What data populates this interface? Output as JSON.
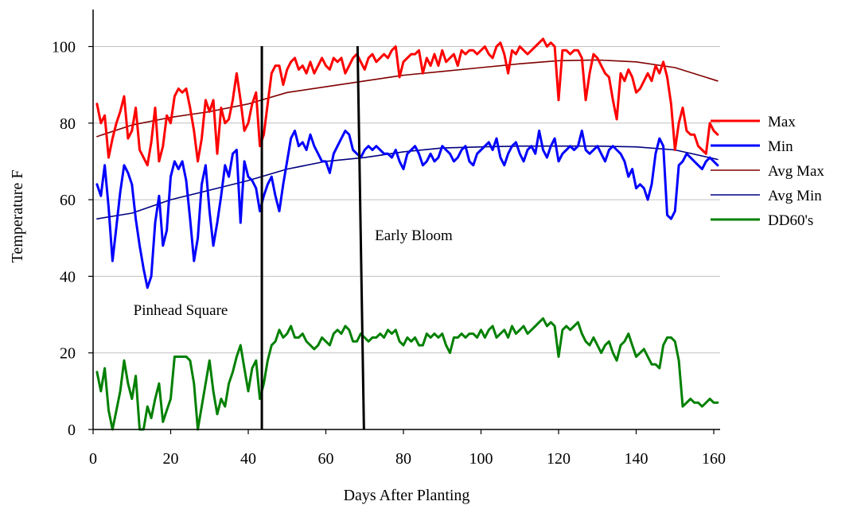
{
  "chart_data": {
    "type": "line",
    "title": "",
    "xlabel": "Days After Planting",
    "ylabel": "Temperature F",
    "xlim": [
      0,
      170
    ],
    "ylim": [
      0,
      110
    ],
    "xticks": [
      0,
      20,
      40,
      60,
      80,
      100,
      120,
      140,
      160
    ],
    "yticks": [
      0,
      20,
      40,
      60,
      80,
      100
    ],
    "grid": "horizontal",
    "legend_position": "right",
    "series": [
      {
        "name": "Max",
        "color": "#ff0000",
        "x": [
          1,
          2,
          3,
          4,
          5,
          6,
          7,
          8,
          9,
          10,
          11,
          12,
          13,
          14,
          15,
          16,
          17,
          18,
          19,
          20,
          21,
          22,
          23,
          24,
          25,
          26,
          27,
          28,
          29,
          30,
          31,
          32,
          33,
          34,
          35,
          36,
          37,
          38,
          39,
          40,
          41,
          42,
          43,
          44,
          45,
          46,
          47,
          48,
          49,
          50,
          51,
          52,
          53,
          54,
          55,
          56,
          57,
          58,
          59,
          60,
          61,
          62,
          63,
          64,
          65,
          66,
          67,
          68,
          69,
          70,
          71,
          72,
          73,
          74,
          75,
          76,
          77,
          78,
          79,
          80,
          81,
          82,
          83,
          84,
          85,
          86,
          87,
          88,
          89,
          90,
          91,
          92,
          93,
          94,
          95,
          96,
          97,
          98,
          99,
          100,
          101,
          102,
          103,
          104,
          105,
          106,
          107,
          108,
          109,
          110,
          111,
          112,
          113,
          114,
          115,
          116,
          117,
          118,
          119,
          120,
          121,
          122,
          123,
          124,
          125,
          126,
          127,
          128,
          129,
          130,
          131,
          132,
          133,
          134,
          135,
          136,
          137,
          138,
          139,
          140,
          141,
          142,
          143,
          144,
          145,
          146,
          147,
          148,
          149,
          150,
          151,
          152,
          153,
          154,
          155,
          156,
          157,
          158,
          159,
          160,
          161
        ],
        "values": [
          85,
          80,
          82,
          71,
          76,
          80,
          83,
          87,
          76,
          78,
          84,
          73,
          71,
          69,
          75,
          84,
          70,
          74,
          82,
          80,
          87,
          89,
          88,
          89,
          84,
          78,
          70,
          76,
          86,
          83,
          86,
          72,
          84,
          80,
          81,
          86,
          93,
          86,
          78,
          80,
          85,
          88,
          74,
          77,
          85,
          93,
          95,
          95,
          90,
          94,
          96,
          97,
          94,
          95,
          93,
          96,
          93,
          95,
          97,
          95,
          94,
          97,
          96,
          97,
          93,
          95,
          97,
          98,
          96,
          94,
          97,
          98,
          96,
          97,
          98,
          97,
          99,
          100,
          92,
          96,
          97,
          98,
          98,
          99,
          93,
          97,
          95,
          98,
          95,
          99,
          96,
          97,
          98,
          95,
          99,
          98,
          99,
          99,
          98,
          99,
          100,
          98,
          97,
          100,
          101,
          98,
          93,
          99,
          98,
          100,
          99,
          98,
          99,
          100,
          101,
          102,
          100,
          101,
          100,
          86,
          99,
          99,
          98,
          99,
          99,
          97,
          86,
          93,
          98,
          97,
          95,
          93,
          92,
          86,
          81,
          93,
          91,
          94,
          92,
          88,
          89,
          91,
          93,
          91,
          95,
          93,
          96,
          92,
          85,
          73,
          80,
          84,
          78,
          77,
          77,
          74,
          73,
          72,
          80,
          78,
          77
        ]
      },
      {
        "name": "Min",
        "color": "#0000ff",
        "x": [
          1,
          2,
          3,
          4,
          5,
          6,
          7,
          8,
          9,
          10,
          11,
          12,
          13,
          14,
          15,
          16,
          17,
          18,
          19,
          20,
          21,
          22,
          23,
          24,
          25,
          26,
          27,
          28,
          29,
          30,
          31,
          32,
          33,
          34,
          35,
          36,
          37,
          38,
          39,
          40,
          41,
          42,
          43,
          44,
          45,
          46,
          47,
          48,
          49,
          50,
          51,
          52,
          53,
          54,
          55,
          56,
          57,
          58,
          59,
          60,
          61,
          62,
          63,
          64,
          65,
          66,
          67,
          68,
          69,
          70,
          71,
          72,
          73,
          74,
          75,
          76,
          77,
          78,
          79,
          80,
          81,
          82,
          83,
          84,
          85,
          86,
          87,
          88,
          89,
          90,
          91,
          92,
          93,
          94,
          95,
          96,
          97,
          98,
          99,
          100,
          101,
          102,
          103,
          104,
          105,
          106,
          107,
          108,
          109,
          110,
          111,
          112,
          113,
          114,
          115,
          116,
          117,
          118,
          119,
          120,
          121,
          122,
          123,
          124,
          125,
          126,
          127,
          128,
          129,
          130,
          131,
          132,
          133,
          134,
          135,
          136,
          137,
          138,
          139,
          140,
          141,
          142,
          143,
          144,
          145,
          146,
          147,
          148,
          149,
          150,
          151,
          152,
          153,
          154,
          155,
          156,
          157,
          158,
          159,
          160,
          161
        ],
        "values": [
          64,
          61,
          69,
          58,
          44,
          53,
          62,
          69,
          67,
          64,
          55,
          48,
          42,
          37,
          40,
          54,
          61,
          48,
          52,
          66,
          70,
          68,
          70,
          65,
          55,
          44,
          50,
          64,
          69,
          57,
          48,
          54,
          61,
          69,
          66,
          72,
          73,
          54,
          70,
          66,
          65,
          63,
          57,
          61,
          64,
          66,
          61,
          57,
          64,
          70,
          76,
          78,
          74,
          75,
          73,
          77,
          74,
          72,
          70,
          70,
          67,
          72,
          74,
          76,
          78,
          77,
          73,
          72,
          71,
          73,
          74,
          73,
          74,
          73,
          72,
          72,
          71,
          73,
          70,
          68,
          72,
          73,
          74,
          72,
          69,
          70,
          72,
          70,
          71,
          74,
          73,
          72,
          70,
          71,
          73,
          74,
          70,
          69,
          72,
          73,
          74,
          75,
          73,
          76,
          71,
          69,
          72,
          74,
          75,
          72,
          70,
          73,
          74,
          72,
          78,
          73,
          71,
          74,
          76,
          70,
          72,
          73,
          74,
          73,
          74,
          78,
          73,
          72,
          73,
          74,
          72,
          70,
          73,
          74,
          73,
          72,
          70,
          66,
          68,
          63,
          64,
          63,
          60,
          64,
          72,
          76,
          74,
          56,
          55,
          57,
          69,
          70,
          72,
          71,
          70,
          69,
          68,
          70,
          71,
          70,
          69
        ]
      },
      {
        "name": "Avg Max",
        "color": "#800000",
        "x": [
          1,
          10,
          20,
          30,
          40,
          50,
          60,
          70,
          80,
          90,
          100,
          110,
          120,
          130,
          140,
          150,
          161
        ],
        "values": [
          76.5,
          79.5,
          81.5,
          83,
          85,
          88,
          89.5,
          91,
          92.5,
          93.5,
          94.5,
          95.5,
          96.3,
          96.5,
          96,
          94.5,
          91
        ]
      },
      {
        "name": "Avg Min",
        "color": "#000080",
        "x": [
          1,
          10,
          20,
          30,
          40,
          50,
          60,
          70,
          80,
          90,
          100,
          110,
          120,
          130,
          140,
          150,
          161
        ],
        "values": [
          55,
          56.5,
          60,
          62.5,
          65,
          68,
          70,
          71,
          72.5,
          73.5,
          73.8,
          74,
          74,
          74,
          73.8,
          73,
          70.5
        ]
      },
      {
        "name": "DD60's",
        "color": "#008000",
        "x": [
          1,
          2,
          3,
          4,
          5,
          6,
          7,
          8,
          9,
          10,
          11,
          12,
          13,
          14,
          15,
          16,
          17,
          18,
          19,
          20,
          21,
          22,
          23,
          24,
          25,
          26,
          27,
          28,
          29,
          30,
          31,
          32,
          33,
          34,
          35,
          36,
          37,
          38,
          39,
          40,
          41,
          42,
          43,
          44,
          45,
          46,
          47,
          48,
          49,
          50,
          51,
          52,
          53,
          54,
          55,
          56,
          57,
          58,
          59,
          60,
          61,
          62,
          63,
          64,
          65,
          66,
          67,
          68,
          69,
          70,
          71,
          72,
          73,
          74,
          75,
          76,
          77,
          78,
          79,
          80,
          81,
          82,
          83,
          84,
          85,
          86,
          87,
          88,
          89,
          90,
          91,
          92,
          93,
          94,
          95,
          96,
          97,
          98,
          99,
          100,
          101,
          102,
          103,
          104,
          105,
          106,
          107,
          108,
          109,
          110,
          111,
          112,
          113,
          114,
          115,
          116,
          117,
          118,
          119,
          120,
          121,
          122,
          123,
          124,
          125,
          126,
          127,
          128,
          129,
          130,
          131,
          132,
          133,
          134,
          135,
          136,
          137,
          138,
          139,
          140,
          141,
          142,
          143,
          144,
          145,
          146,
          147,
          148,
          149,
          150,
          151,
          152,
          153,
          154,
          155,
          156,
          157,
          158,
          159,
          160,
          161
        ],
        "values": [
          15,
          10,
          16,
          5,
          0,
          5,
          10,
          18,
          12,
          8,
          14,
          0,
          0,
          6,
          3,
          8,
          12,
          2,
          5,
          8,
          19,
          19,
          19,
          19,
          18,
          12,
          0,
          6,
          12,
          18,
          10,
          4,
          8,
          6,
          12,
          15,
          19,
          22,
          16,
          10,
          16,
          18,
          8,
          12,
          18,
          22,
          23,
          26,
          24,
          25,
          27,
          24,
          24,
          25,
          23,
          22,
          21,
          22,
          24,
          23,
          22,
          25,
          26,
          25,
          27,
          26,
          23,
          23,
          25,
          24,
          23,
          24,
          24,
          25,
          24,
          26,
          25,
          26,
          23,
          22,
          24,
          23,
          24,
          22,
          22,
          25,
          24,
          25,
          24,
          25,
          22,
          20,
          24,
          24,
          25,
          24,
          25,
          25,
          24,
          26,
          24,
          26,
          27,
          24,
          25,
          26,
          24,
          27,
          25,
          26,
          27,
          25,
          26,
          27,
          28,
          29,
          27,
          28,
          27,
          19,
          26,
          27,
          26,
          27,
          28,
          25,
          23,
          22,
          24,
          22,
          20,
          22,
          23,
          20,
          18,
          22,
          23,
          25,
          22,
          19,
          20,
          21,
          19,
          17,
          17,
          16,
          22,
          24,
          24,
          23,
          18,
          6,
          7,
          8,
          7,
          7,
          6,
          7,
          8,
          7,
          7
        ]
      }
    ],
    "markers": [
      {
        "x": 43.5,
        "label": "Pinhead Square"
      },
      {
        "x": 69,
        "label": "Early Bloom"
      }
    ]
  }
}
